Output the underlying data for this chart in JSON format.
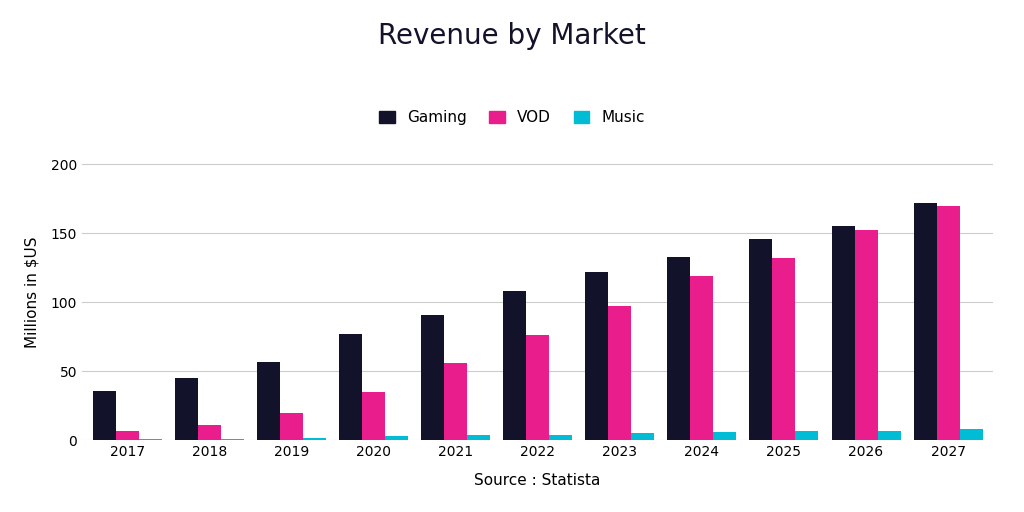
{
  "title": "Revenue by Market",
  "xlabel": "Source : Statista",
  "ylabel": "Millions in $US",
  "years": [
    2017,
    2018,
    2019,
    2020,
    2021,
    2022,
    2023,
    2024,
    2025,
    2026,
    2027
  ],
  "gaming": [
    36,
    45,
    57,
    77,
    91,
    108,
    122,
    133,
    146,
    155,
    172
  ],
  "vod": [
    7,
    11,
    20,
    35,
    56,
    76,
    97,
    119,
    132,
    152,
    170
  ],
  "music": [
    1,
    1,
    2,
    3,
    4,
    4,
    5,
    6,
    7,
    7,
    8
  ],
  "colors": {
    "gaming": "#12122a",
    "vod": "#e91e8c",
    "music": "#00bcd4"
  },
  "ylim": [
    0,
    215
  ],
  "yticks": [
    0,
    50,
    100,
    150,
    200
  ],
  "background_color": "#ffffff",
  "grid_color": "#cccccc",
  "bar_width": 0.28,
  "title_fontsize": 20,
  "legend_fontsize": 11,
  "axis_fontsize": 11,
  "tick_fontsize": 10
}
